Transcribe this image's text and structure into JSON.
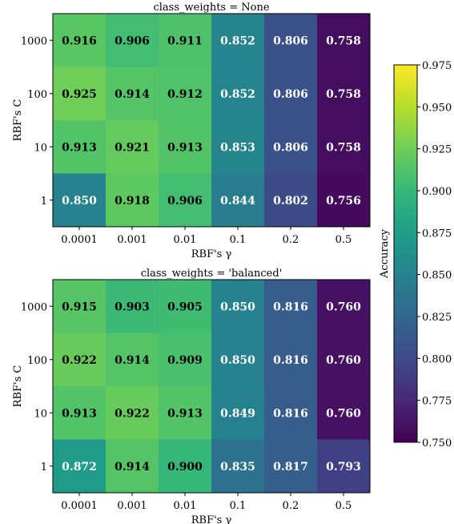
{
  "chart_data": [
    {
      "type": "heatmap",
      "title": "class_weights = None",
      "xlabel": "RBF's γ",
      "ylabel": "RBF's C",
      "x_categories": [
        "0.0001",
        "0.001",
        "0.01",
        "0.1",
        "0.2",
        "0.5"
      ],
      "y_categories": [
        "1000",
        "100",
        "10",
        "1"
      ],
      "values": [
        [
          0.916,
          0.906,
          0.911,
          0.852,
          0.806,
          0.758
        ],
        [
          0.925,
          0.914,
          0.912,
          0.852,
          0.806,
          0.758
        ],
        [
          0.913,
          0.921,
          0.913,
          0.853,
          0.806,
          0.758
        ],
        [
          0.85,
          0.918,
          0.906,
          0.844,
          0.802,
          0.756
        ]
      ]
    },
    {
      "type": "heatmap",
      "title": "class_weights = 'balanced'",
      "xlabel": "RBF's γ",
      "ylabel": "RBF's C",
      "x_categories": [
        "0.0001",
        "0.001",
        "0.01",
        "0.1",
        "0.2",
        "0.5"
      ],
      "y_categories": [
        "1000",
        "100",
        "10",
        "1"
      ],
      "values": [
        [
          0.915,
          0.903,
          0.905,
          0.85,
          0.816,
          0.76
        ],
        [
          0.922,
          0.914,
          0.909,
          0.85,
          0.816,
          0.76
        ],
        [
          0.913,
          0.922,
          0.913,
          0.849,
          0.816,
          0.76
        ],
        [
          0.872,
          0.914,
          0.9,
          0.835,
          0.817,
          0.793
        ]
      ]
    }
  ],
  "colorbar": {
    "label": "Accuracy",
    "colormap": "viridis",
    "range": [
      0.75,
      0.975
    ],
    "ticks": [
      "0.750",
      "0.775",
      "0.800",
      "0.825",
      "0.850",
      "0.875",
      "0.900",
      "0.925",
      "0.950",
      "0.975"
    ]
  }
}
